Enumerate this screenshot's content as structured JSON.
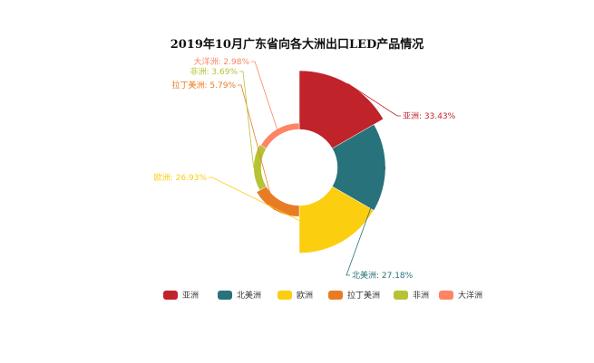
{
  "chart_data": {
    "type": "pie",
    "title": "2019年10月广东省向各大洲出口LED产品情况",
    "categories": [
      "亚洲",
      "北美洲",
      "欧洲",
      "拉丁美洲",
      "非洲",
      "大洋洲"
    ],
    "values": [
      33.43,
      27.18,
      26.93,
      5.79,
      3.69,
      2.98
    ],
    "value_labels": [
      "亚洲: 33.43%",
      "北美洲: 27.18%",
      "欧洲: 26.93%",
      "拉丁美洲: 5.79%",
      "非洲: 3.69%",
      "大洋洲: 2.98%"
    ],
    "colors": [
      "#c0232a",
      "#27727b",
      "#fcce10",
      "#e87c25",
      "#b5c334",
      "#fe8463"
    ],
    "style": "donut-rose",
    "legend_position": "bottom-center"
  }
}
